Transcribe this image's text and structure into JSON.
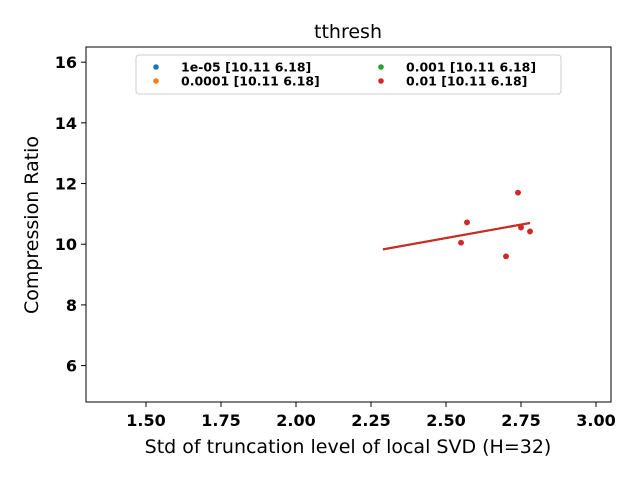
{
  "chart_data": {
    "type": "scatter",
    "title": "tthresh",
    "xlabel": "Std of truncation level of local SVD (H=32)",
    "ylabel": "Compression Ratio",
    "xlim": [
      1.3,
      3.05
    ],
    "ylim": [
      4.8,
      16.5
    ],
    "xticks": [
      "1.50",
      "1.75",
      "2.00",
      "2.25",
      "2.50",
      "2.75",
      "3.00"
    ],
    "yticks": [
      "6",
      "8",
      "10",
      "12",
      "14",
      "16"
    ],
    "grid": false,
    "legend": {
      "placement": "top-center",
      "columns": 2
    },
    "series": [
      {
        "name": "1e-05 [10.11  6.18]",
        "color": "#1f77b4",
        "points": [
          [
            2.55,
            10.05
          ],
          [
            2.57,
            10.72
          ],
          [
            2.7,
            9.6
          ],
          [
            2.74,
            11.7
          ],
          [
            2.75,
            10.55
          ],
          [
            2.78,
            10.42
          ]
        ],
        "fit": [
          [
            2.29,
            9.83
          ],
          [
            2.78,
            10.7
          ]
        ]
      },
      {
        "name": "0.0001 [10.11  6.18]",
        "color": "#ff7f0e",
        "points": [
          [
            2.55,
            10.05
          ],
          [
            2.57,
            10.72
          ],
          [
            2.7,
            9.6
          ],
          [
            2.74,
            11.7
          ],
          [
            2.75,
            10.55
          ],
          [
            2.78,
            10.42
          ]
        ],
        "fit": [
          [
            2.29,
            9.83
          ],
          [
            2.78,
            10.7
          ]
        ]
      },
      {
        "name": "0.001 [10.11  6.18]",
        "color": "#2ca02c",
        "points": [
          [
            2.55,
            10.05
          ],
          [
            2.57,
            10.72
          ],
          [
            2.7,
            9.6
          ],
          [
            2.74,
            11.7
          ],
          [
            2.75,
            10.55
          ],
          [
            2.78,
            10.42
          ]
        ],
        "fit": [
          [
            2.29,
            9.83
          ],
          [
            2.78,
            10.7
          ]
        ]
      },
      {
        "name": "0.01 [10.11  6.18]",
        "color": "#d62728",
        "points": [
          [
            2.55,
            10.05
          ],
          [
            2.57,
            10.72
          ],
          [
            2.7,
            9.6
          ],
          [
            2.74,
            11.7
          ],
          [
            2.75,
            10.55
          ],
          [
            2.78,
            10.42
          ]
        ],
        "fit": [
          [
            2.29,
            9.83
          ],
          [
            2.78,
            10.7
          ]
        ]
      }
    ]
  }
}
